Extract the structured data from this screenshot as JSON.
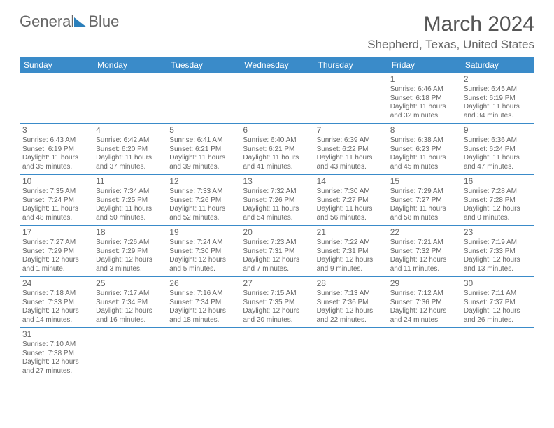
{
  "logo": {
    "text1": "General",
    "text2": "Blue"
  },
  "header": {
    "title": "March 2024",
    "location": "Shepherd, Texas, United States"
  },
  "day_headers": [
    "Sunday",
    "Monday",
    "Tuesday",
    "Wednesday",
    "Thursday",
    "Friday",
    "Saturday"
  ],
  "calendar": {
    "type": "table",
    "header_bg": "#3a8bc9",
    "header_fg": "#ffffff",
    "border_color": "#3a8bc9",
    "text_color": "#666666",
    "font_size_body": 10,
    "font_size_header": 12,
    "weeks": [
      [
        null,
        null,
        null,
        null,
        null,
        {
          "n": "1",
          "sr": "Sunrise: 6:46 AM",
          "ss": "Sunset: 6:18 PM",
          "dl1": "Daylight: 11 hours",
          "dl2": "and 32 minutes."
        },
        {
          "n": "2",
          "sr": "Sunrise: 6:45 AM",
          "ss": "Sunset: 6:19 PM",
          "dl1": "Daylight: 11 hours",
          "dl2": "and 34 minutes."
        }
      ],
      [
        {
          "n": "3",
          "sr": "Sunrise: 6:43 AM",
          "ss": "Sunset: 6:19 PM",
          "dl1": "Daylight: 11 hours",
          "dl2": "and 35 minutes."
        },
        {
          "n": "4",
          "sr": "Sunrise: 6:42 AM",
          "ss": "Sunset: 6:20 PM",
          "dl1": "Daylight: 11 hours",
          "dl2": "and 37 minutes."
        },
        {
          "n": "5",
          "sr": "Sunrise: 6:41 AM",
          "ss": "Sunset: 6:21 PM",
          "dl1": "Daylight: 11 hours",
          "dl2": "and 39 minutes."
        },
        {
          "n": "6",
          "sr": "Sunrise: 6:40 AM",
          "ss": "Sunset: 6:21 PM",
          "dl1": "Daylight: 11 hours",
          "dl2": "and 41 minutes."
        },
        {
          "n": "7",
          "sr": "Sunrise: 6:39 AM",
          "ss": "Sunset: 6:22 PM",
          "dl1": "Daylight: 11 hours",
          "dl2": "and 43 minutes."
        },
        {
          "n": "8",
          "sr": "Sunrise: 6:38 AM",
          "ss": "Sunset: 6:23 PM",
          "dl1": "Daylight: 11 hours",
          "dl2": "and 45 minutes."
        },
        {
          "n": "9",
          "sr": "Sunrise: 6:36 AM",
          "ss": "Sunset: 6:24 PM",
          "dl1": "Daylight: 11 hours",
          "dl2": "and 47 minutes."
        }
      ],
      [
        {
          "n": "10",
          "sr": "Sunrise: 7:35 AM",
          "ss": "Sunset: 7:24 PM",
          "dl1": "Daylight: 11 hours",
          "dl2": "and 48 minutes."
        },
        {
          "n": "11",
          "sr": "Sunrise: 7:34 AM",
          "ss": "Sunset: 7:25 PM",
          "dl1": "Daylight: 11 hours",
          "dl2": "and 50 minutes."
        },
        {
          "n": "12",
          "sr": "Sunrise: 7:33 AM",
          "ss": "Sunset: 7:26 PM",
          "dl1": "Daylight: 11 hours",
          "dl2": "and 52 minutes."
        },
        {
          "n": "13",
          "sr": "Sunrise: 7:32 AM",
          "ss": "Sunset: 7:26 PM",
          "dl1": "Daylight: 11 hours",
          "dl2": "and 54 minutes."
        },
        {
          "n": "14",
          "sr": "Sunrise: 7:30 AM",
          "ss": "Sunset: 7:27 PM",
          "dl1": "Daylight: 11 hours",
          "dl2": "and 56 minutes."
        },
        {
          "n": "15",
          "sr": "Sunrise: 7:29 AM",
          "ss": "Sunset: 7:27 PM",
          "dl1": "Daylight: 11 hours",
          "dl2": "and 58 minutes."
        },
        {
          "n": "16",
          "sr": "Sunrise: 7:28 AM",
          "ss": "Sunset: 7:28 PM",
          "dl1": "Daylight: 12 hours",
          "dl2": "and 0 minutes."
        }
      ],
      [
        {
          "n": "17",
          "sr": "Sunrise: 7:27 AM",
          "ss": "Sunset: 7:29 PM",
          "dl1": "Daylight: 12 hours",
          "dl2": "and 1 minute."
        },
        {
          "n": "18",
          "sr": "Sunrise: 7:26 AM",
          "ss": "Sunset: 7:29 PM",
          "dl1": "Daylight: 12 hours",
          "dl2": "and 3 minutes."
        },
        {
          "n": "19",
          "sr": "Sunrise: 7:24 AM",
          "ss": "Sunset: 7:30 PM",
          "dl1": "Daylight: 12 hours",
          "dl2": "and 5 minutes."
        },
        {
          "n": "20",
          "sr": "Sunrise: 7:23 AM",
          "ss": "Sunset: 7:31 PM",
          "dl1": "Daylight: 12 hours",
          "dl2": "and 7 minutes."
        },
        {
          "n": "21",
          "sr": "Sunrise: 7:22 AM",
          "ss": "Sunset: 7:31 PM",
          "dl1": "Daylight: 12 hours",
          "dl2": "and 9 minutes."
        },
        {
          "n": "22",
          "sr": "Sunrise: 7:21 AM",
          "ss": "Sunset: 7:32 PM",
          "dl1": "Daylight: 12 hours",
          "dl2": "and 11 minutes."
        },
        {
          "n": "23",
          "sr": "Sunrise: 7:19 AM",
          "ss": "Sunset: 7:33 PM",
          "dl1": "Daylight: 12 hours",
          "dl2": "and 13 minutes."
        }
      ],
      [
        {
          "n": "24",
          "sr": "Sunrise: 7:18 AM",
          "ss": "Sunset: 7:33 PM",
          "dl1": "Daylight: 12 hours",
          "dl2": "and 14 minutes."
        },
        {
          "n": "25",
          "sr": "Sunrise: 7:17 AM",
          "ss": "Sunset: 7:34 PM",
          "dl1": "Daylight: 12 hours",
          "dl2": "and 16 minutes."
        },
        {
          "n": "26",
          "sr": "Sunrise: 7:16 AM",
          "ss": "Sunset: 7:34 PM",
          "dl1": "Daylight: 12 hours",
          "dl2": "and 18 minutes."
        },
        {
          "n": "27",
          "sr": "Sunrise: 7:15 AM",
          "ss": "Sunset: 7:35 PM",
          "dl1": "Daylight: 12 hours",
          "dl2": "and 20 minutes."
        },
        {
          "n": "28",
          "sr": "Sunrise: 7:13 AM",
          "ss": "Sunset: 7:36 PM",
          "dl1": "Daylight: 12 hours",
          "dl2": "and 22 minutes."
        },
        {
          "n": "29",
          "sr": "Sunrise: 7:12 AM",
          "ss": "Sunset: 7:36 PM",
          "dl1": "Daylight: 12 hours",
          "dl2": "and 24 minutes."
        },
        {
          "n": "30",
          "sr": "Sunrise: 7:11 AM",
          "ss": "Sunset: 7:37 PM",
          "dl1": "Daylight: 12 hours",
          "dl2": "and 26 minutes."
        }
      ],
      [
        {
          "n": "31",
          "sr": "Sunrise: 7:10 AM",
          "ss": "Sunset: 7:38 PM",
          "dl1": "Daylight: 12 hours",
          "dl2": "and 27 minutes."
        },
        null,
        null,
        null,
        null,
        null,
        null
      ]
    ]
  }
}
